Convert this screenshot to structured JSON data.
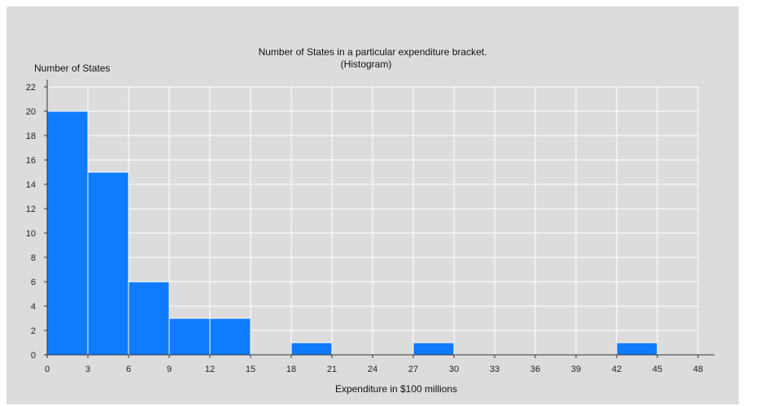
{
  "chart_data": {
    "type": "bar",
    "title": "Number of States in a particular expenditure bracket.",
    "subtitle": "(Histogram)",
    "xlabel": "Expenditure in $100 millions",
    "ylabel": "Number of States",
    "xlim": [
      0,
      48
    ],
    "ylim": [
      0,
      22
    ],
    "x_ticks": [
      "0",
      "3",
      "6",
      "9",
      "12",
      "15",
      "18",
      "21",
      "24",
      "27",
      "30",
      "33",
      "36",
      "39",
      "42",
      "45",
      "48"
    ],
    "y_ticks": [
      "0",
      "2",
      "4",
      "6",
      "8",
      "10",
      "12",
      "14",
      "16",
      "18",
      "20",
      "22"
    ],
    "grid": true,
    "bars": [
      {
        "x0": 0,
        "x1": 3,
        "value": 20
      },
      {
        "x0": 3,
        "x1": 6,
        "value": 15
      },
      {
        "x0": 6,
        "x1": 9,
        "value": 6
      },
      {
        "x0": 9,
        "x1": 12,
        "value": 3
      },
      {
        "x0": 12,
        "x1": 15,
        "value": 3
      },
      {
        "x0": 18,
        "x1": 21,
        "value": 1
      },
      {
        "x0": 27,
        "x1": 30,
        "value": 1
      },
      {
        "x0": 42,
        "x1": 45,
        "value": 1
      }
    ],
    "bar_color": "#0f7bff",
    "grid_color": "#ffffff",
    "background_color": "#dcdcdc"
  }
}
